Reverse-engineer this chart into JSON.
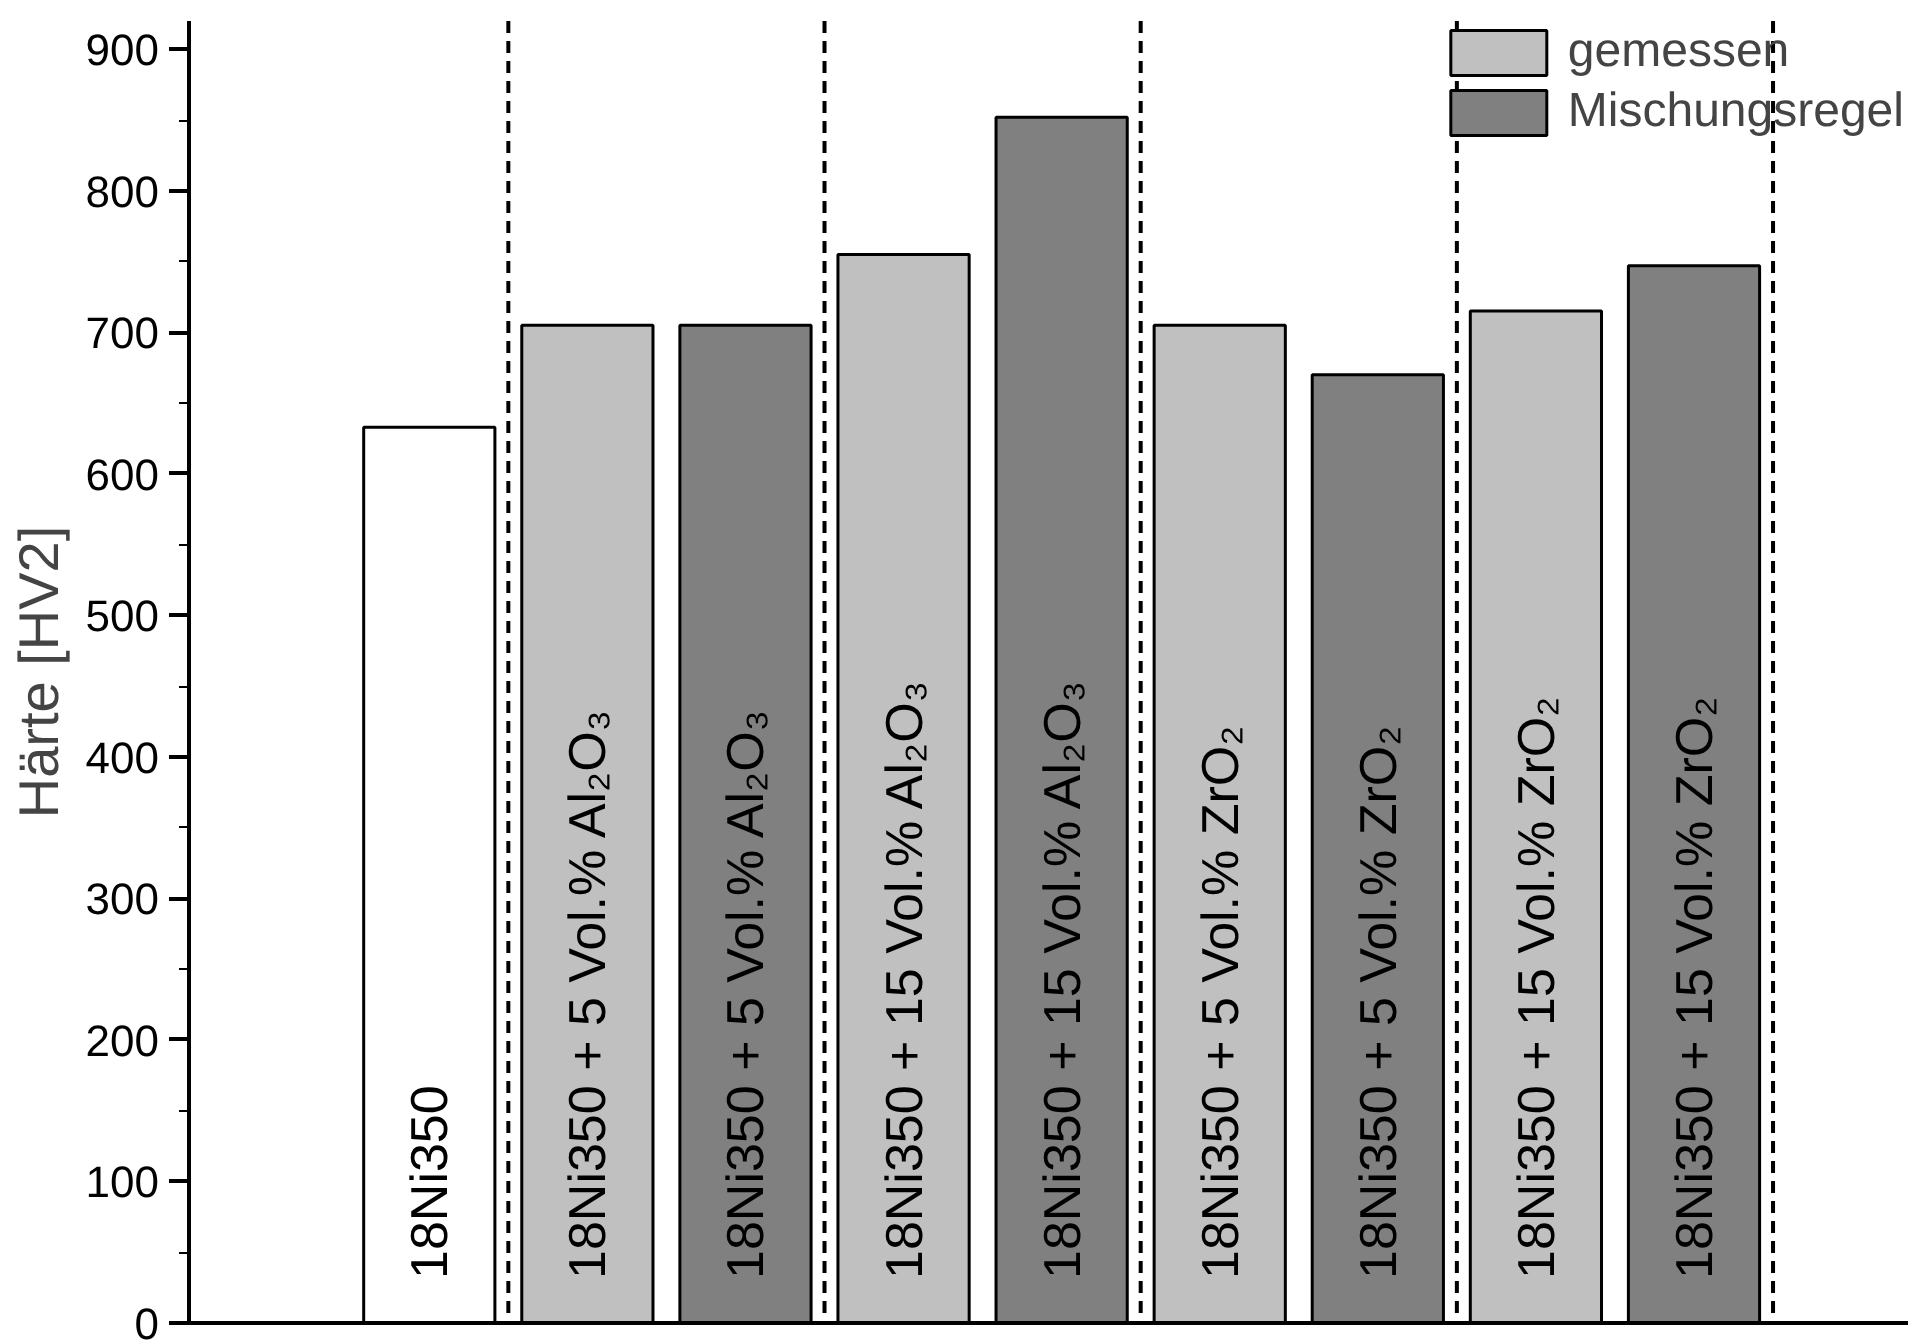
{
  "chart_data": {
    "type": "bar",
    "ylabel": "Härte [HV2]",
    "categories": [
      "18Ni350",
      "18Ni350 + 5 Vol.% Al₂O₃",
      "18Ni350 + 5 Vol.% Al₂O₃",
      "18Ni350 + 15 Vol.% Al₂O₃",
      "18Ni350 + 15 Vol.% Al₂O₃",
      "18Ni350 + 5 Vol.% ZrO₂",
      "18Ni350 + 5 Vol.% ZrO₂",
      "18Ni350 + 15 Vol.% ZrO₂",
      "18Ni350 + 15 Vol.% ZrO₂"
    ],
    "series": [
      {
        "color": "#ffffff",
        "values": [
          633,
          null,
          null,
          null,
          null,
          null,
          null,
          null,
          null
        ]
      },
      {
        "name": "gemessen",
        "color": "#c0c0c0",
        "values": [
          null,
          705,
          null,
          755,
          null,
          705,
          null,
          715,
          null
        ]
      },
      {
        "name": "Mischungsregel",
        "color": "#808080",
        "values": [
          null,
          null,
          705,
          null,
          852,
          null,
          670,
          null,
          747
        ]
      }
    ],
    "ylim": [
      0,
      920
    ],
    "yticks": [
      0,
      100,
      200,
      300,
      400,
      500,
      600,
      700,
      800,
      900
    ],
    "grid": false,
    "legend": "top right",
    "tick_labels": "y"
  }
}
